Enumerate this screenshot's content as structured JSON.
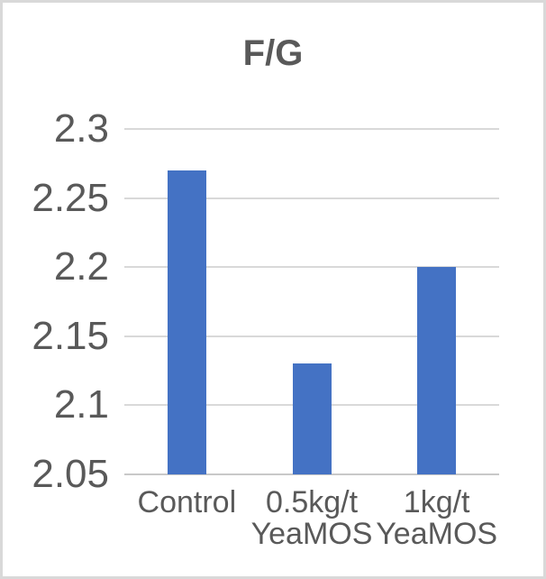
{
  "window": {
    "background_color": "#ffffff",
    "border_color": "#d9d9d9"
  },
  "chart_data": {
    "type": "bar",
    "title": "F/G",
    "categories": [
      "Control",
      "0.5kg/t YeaMOS",
      "1kg/t YeaMOS"
    ],
    "category_label_lines": [
      [
        "Control"
      ],
      [
        "0.5kg/t",
        "YeaMOS"
      ],
      [
        "1kg/t",
        "YeaMOS"
      ]
    ],
    "values": [
      2.27,
      2.13,
      2.2
    ],
    "xlabel": "",
    "ylabel": "",
    "ylim": [
      2.05,
      2.3
    ],
    "ytick_step": 0.05,
    "ytick_labels": [
      "2.05",
      "2.1",
      "2.15",
      "2.2",
      "2.25",
      "2.3"
    ],
    "grid": true,
    "legend_position": "none",
    "bar_color": "#4472c4",
    "gridline_color": "#d9d9d9",
    "axis_line_color": "#c9c9c9",
    "text_color": "#595959"
  }
}
